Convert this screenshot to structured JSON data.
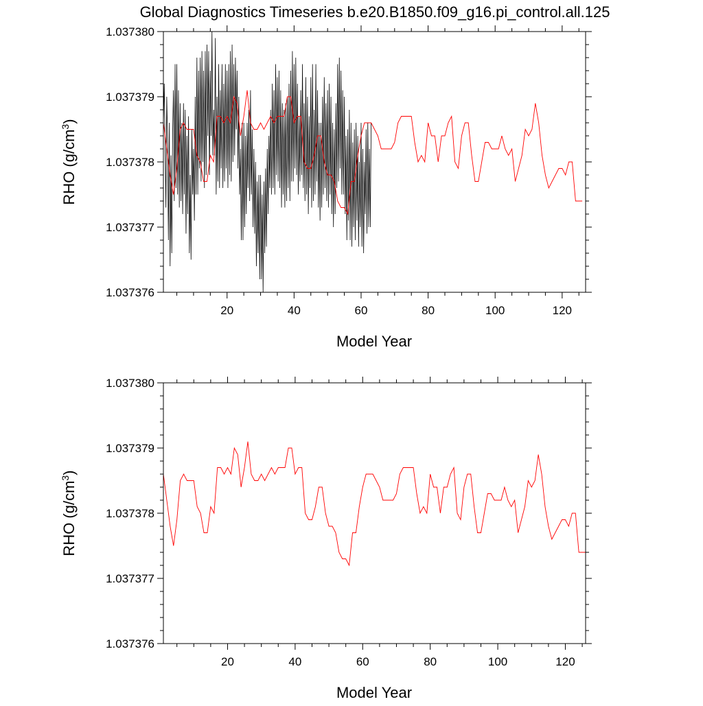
{
  "title": "Global Diagnostics Timeseries b.e20.B1850.f09_g16.pi_control.all.125",
  "colors": {
    "monthly": "#000000",
    "annual": "#ff0000",
    "axis": "#000000"
  },
  "chart_data": [
    {
      "type": "line",
      "xlabel": "Model Year",
      "ylabel": "RHO (g/cm",
      "ylabel_sup": "3",
      "ylabel_close": ")",
      "xlim": [
        1,
        127
      ],
      "ylim": [
        1.037376,
        1.03738
      ],
      "xticks": [
        20,
        40,
        60,
        80,
        100,
        120
      ],
      "yticks": [
        1.037376,
        1.037377,
        1.037378,
        1.037379,
        1.03738
      ],
      "ytick_labels": [
        "1.037376",
        "1.037377",
        "1.037378",
        "1.037379",
        "1.037380"
      ],
      "grid": false,
      "series": [
        {
          "key": "monthly",
          "x_start": 1,
          "x_step": 0.25,
          "values": [
            1.0373786,
            1.0373792,
            1.0373783,
            1.0373773,
            1.037379,
            1.0373783,
            1.0373768,
            1.0373786,
            1.0373764,
            1.0373781,
            1.0373766,
            1.0373784,
            1.0373791,
            1.0373774,
            1.0373795,
            1.0373776,
            1.0373795,
            1.0373775,
            1.0373791,
            1.0373773,
            1.0373789,
            1.0373774,
            1.0373786,
            1.0373772,
            1.0373789,
            1.0373775,
            1.0373788,
            1.0373769,
            1.0373784,
            1.0373772,
            1.0373787,
            1.0373766,
            1.0373778,
            1.0373765,
            1.0373785,
            1.0373775,
            1.0373782,
            1.0373771,
            1.037379,
            1.0373775,
            1.0373796,
            1.0373775,
            1.0373794,
            1.0373779,
            1.0373796,
            1.0373777,
            1.0373797,
            1.037378,
            1.0373794,
            1.0373776,
            1.0373797,
            1.0373778,
            1.0373798,
            1.0373784,
            1.0373797,
            1.0373778,
            1.0373794,
            1.0373784,
            1.03738,
            1.0373781,
            1.0373788,
            1.0373781,
            1.0373799,
            1.0373775,
            1.037379,
            1.0373777,
            1.0373795,
            1.0373776,
            1.0373791,
            1.0373779,
            1.0373795,
            1.0373776,
            1.0373792,
            1.0373777,
            1.0373795,
            1.0373779,
            1.0373794,
            1.0373776,
            1.0373795,
            1.0373778,
            1.0373797,
            1.0373777,
            1.0373798,
            1.037378,
            1.0373795,
            1.0373781,
            1.0373796,
            1.0373785,
            1.0373794,
            1.0373779,
            1.037379,
            1.0373775,
            1.0373782,
            1.0373768,
            1.0373786,
            1.0373768,
            1.0373786,
            1.037377,
            1.0373784,
            1.0373772,
            1.0373786,
            1.0373776,
            1.0373788,
            1.0373774,
            1.0373791,
            1.0373775,
            1.0373785,
            1.037377,
            1.0373782,
            1.0373769,
            1.037378,
            1.0373764,
            1.0373777,
            1.0373766,
            1.0373778,
            1.0373762,
            1.0373778,
            1.0373762,
            1.0373775,
            1.037376,
            1.0373777,
            1.0373766,
            1.0373779,
            1.0373767,
            1.0373782,
            1.0373772,
            1.0373784,
            1.0373776,
            1.0373788,
            1.0373775,
            1.0373792,
            1.0373776,
            1.0373791,
            1.0373775,
            1.0373795,
            1.0373778,
            1.0373793,
            1.0373777,
            1.0373794,
            1.0373776,
            1.0373791,
            1.0373773,
            1.0373789,
            1.0373775,
            1.0373788,
            1.0373773,
            1.0373789,
            1.0373774,
            1.037379,
            1.0373776,
            1.0373792,
            1.0373774,
            1.0373794,
            1.0373777,
            1.0373797,
            1.0373777,
            1.0373795,
            1.0373779,
            1.0373796,
            1.0373778,
            1.0373792,
            1.0373775,
            1.0373787,
            1.0373777,
            1.0373791,
            1.0373778,
            1.0373795,
            1.0373776,
            1.0373789,
            1.0373774,
            1.0373793,
            1.0373775,
            1.037379,
            1.0373772,
            1.0373787,
            1.0373776,
            1.0373793,
            1.0373773,
            1.0373795,
            1.0373774,
            1.0373788,
            1.0373775,
            1.0373795,
            1.0373777,
            1.0373791,
            1.0373773,
            1.0373786,
            1.0373771,
            1.0373786,
            1.0373773,
            1.037379,
            1.0373775,
            1.0373793,
            1.0373776,
            1.0373789,
            1.0373774,
            1.0373791,
            1.0373773,
            1.0373792,
            1.0373775,
            1.037379,
            1.0373772,
            1.0373786,
            1.037377,
            1.0373785,
            1.0373772,
            1.0373789,
            1.0373776,
            1.0373795,
            1.0373777,
            1.0373796,
            1.0373779,
            1.0373794,
            1.0373775,
            1.0373791,
            1.0373775,
            1.037379,
            1.0373772,
            1.0373784,
            1.0373768,
            1.0373785,
            1.0373771,
            1.0373788,
            1.0373768,
            1.0373786,
            1.0373767,
            1.0373783,
            1.037377,
            1.0373785,
            1.0373768,
            1.0373786,
            1.0373771,
            1.0373784,
            1.0373767,
            1.037378,
            1.037377,
            1.0373786,
            1.0373767,
            1.0373782,
            1.0373766,
            1.037378,
            1.0373772,
            1.0373785,
            1.0373769,
            1.0373786,
            1.037377,
            1.0373782,
            1.037377,
            1.0373786
          ]
        },
        {
          "key": "annual",
          "x": [
            1,
            2,
            3,
            4,
            5,
            6,
            7,
            8,
            9,
            10,
            11,
            12,
            13,
            14,
            15,
            16,
            17,
            18,
            19,
            20,
            21,
            22,
            23,
            24,
            25,
            26,
            27,
            28,
            29,
            30,
            31,
            32,
            33,
            34,
            35,
            36,
            37,
            38,
            39,
            40,
            41,
            42,
            43,
            44,
            45,
            46,
            47,
            48,
            49,
            50,
            51,
            52,
            53,
            54,
            55,
            56,
            57,
            58,
            59,
            60,
            61,
            62,
            63,
            64,
            65,
            66,
            67,
            68,
            69,
            70,
            71,
            72,
            73,
            74,
            75,
            76,
            77,
            78,
            79,
            80,
            81,
            82,
            83,
            84,
            85,
            86,
            87,
            88,
            89,
            90,
            91,
            92,
            93,
            94,
            95,
            96,
            97,
            98,
            99,
            100,
            101,
            102,
            103,
            104,
            105,
            106,
            107,
            108,
            109,
            110,
            111,
            112,
            113,
            114,
            115,
            116,
            117,
            118,
            119,
            120,
            121,
            122,
            123,
            124,
            125,
            126
          ],
          "values": [
            1.0373786,
            1.0373782,
            1.0373778,
            1.0373775,
            1.0373779,
            1.0373785,
            1.0373786,
            1.0373785,
            1.0373785,
            1.0373785,
            1.0373781,
            1.037378,
            1.0373777,
            1.0373777,
            1.0373781,
            1.037378,
            1.0373787,
            1.0373787,
            1.0373786,
            1.0373787,
            1.0373786,
            1.037379,
            1.0373789,
            1.0373784,
            1.0373787,
            1.0373791,
            1.0373786,
            1.0373785,
            1.0373785,
            1.0373786,
            1.0373785,
            1.0373786,
            1.0373787,
            1.0373786,
            1.0373787,
            1.0373787,
            1.0373787,
            1.037379,
            1.037379,
            1.0373786,
            1.0373787,
            1.0373787,
            1.037378,
            1.0373779,
            1.0373779,
            1.0373781,
            1.0373784,
            1.0373784,
            1.037378,
            1.0373778,
            1.0373778,
            1.0373777,
            1.0373774,
            1.0373773,
            1.0373773,
            1.0373772,
            1.0373777,
            1.0373777,
            1.0373781,
            1.0373784,
            1.0373786,
            1.0373786,
            1.0373786,
            1.0373785,
            1.0373784,
            1.0373782,
            1.0373782,
            1.0373782,
            1.0373782,
            1.0373783,
            1.0373786,
            1.0373787,
            1.0373787,
            1.0373787,
            1.0373787,
            1.0373783,
            1.037378,
            1.0373781,
            1.037378,
            1.0373786,
            1.0373784,
            1.0373784,
            1.037378,
            1.0373784,
            1.0373784,
            1.0373786,
            1.0373787,
            1.037378,
            1.0373779,
            1.0373784,
            1.0373786,
            1.0373786,
            1.0373781,
            1.0373777,
            1.0373777,
            1.037378,
            1.0373783,
            1.0373783,
            1.0373782,
            1.0373782,
            1.0373782,
            1.0373784,
            1.0373782,
            1.0373781,
            1.0373782,
            1.0373777,
            1.0373779,
            1.0373781,
            1.0373785,
            1.0373784,
            1.0373785,
            1.0373789,
            1.0373786,
            1.0373781,
            1.0373778,
            1.0373776,
            1.0373777,
            1.0373778,
            1.0373779,
            1.0373779,
            1.0373778,
            1.037378,
            1.037378,
            1.0373774,
            1.0373774,
            1.0373774
          ]
        }
      ]
    },
    {
      "type": "line",
      "xlabel": "Model Year",
      "ylabel": "RHO (g/cm",
      "ylabel_sup": "3",
      "ylabel_close": ")",
      "xlim": [
        1,
        126
      ],
      "ylim": [
        1.037376,
        1.03738
      ],
      "xticks": [
        20,
        40,
        60,
        80,
        100,
        120
      ],
      "yticks": [
        1.037376,
        1.037377,
        1.037378,
        1.037379,
        1.03738
      ],
      "ytick_labels": [
        "1.037376",
        "1.037377",
        "1.037378",
        "1.037379",
        "1.037380"
      ],
      "grid": false,
      "series": [
        {
          "key": "annual",
          "ref_series": 1
        }
      ]
    }
  ]
}
